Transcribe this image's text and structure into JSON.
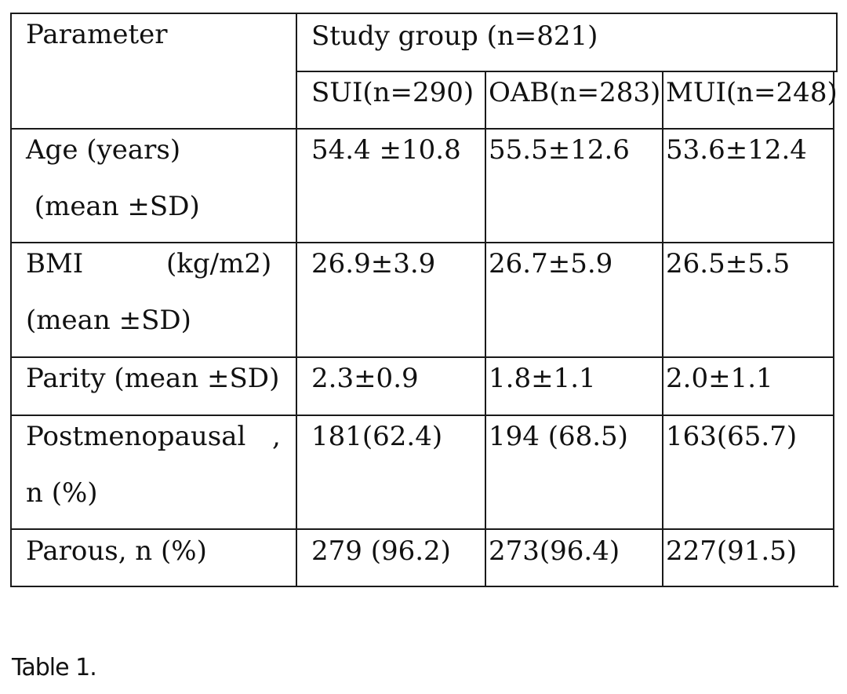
{
  "table": {
    "header": {
      "parameter": "Parameter",
      "study_group": "Study group (n=821)",
      "columns": [
        "SUI(n=290)",
        "OAB(n=283)",
        "MUI(n=248)"
      ]
    },
    "rows": [
      {
        "label_lines": [
          "Age (years)",
          " (mean ±SD)"
        ],
        "values": [
          "54.4 ±10.8",
          "55.5±12.6",
          "53.6±12.4"
        ]
      },
      {
        "label_lines": [
          "BMI",
          "(kg/m2)",
          "(mean ±SD)"
        ],
        "values": [
          "26.9±3.9",
          "26.7±5.9",
          "26.5±5.5"
        ]
      },
      {
        "label_lines": [
          "Parity (mean ±SD)"
        ],
        "values": [
          "2.3±0.9",
          "1.8±1.1",
          "2.0±1.1"
        ]
      },
      {
        "label_lines": [
          "Postmenopausal",
          ",",
          "n (%)"
        ],
        "values": [
          "181(62.4)",
          "194 (68.5)",
          "163(65.7)"
        ]
      },
      {
        "label_lines": [
          "Parous, n (%)"
        ],
        "values": [
          "279 (96.2)",
          "273(96.4)",
          "227(91.5)"
        ]
      }
    ]
  },
  "caption": "Table 1."
}
